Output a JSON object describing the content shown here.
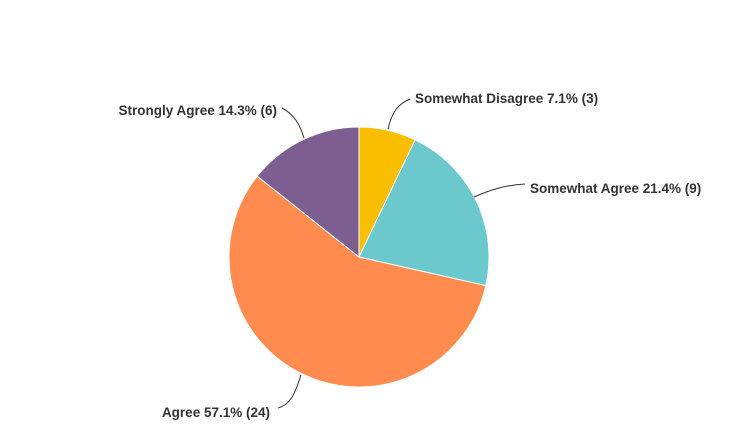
{
  "chart_data": {
    "type": "pie",
    "start": "top",
    "direction": "clockwise",
    "slices": [
      {
        "label": "Somewhat Disagree",
        "percent": 7.1,
        "count": 3,
        "color": "#F9BE00",
        "text": "Somewhat Disagree 7.1% (3)"
      },
      {
        "label": "Somewhat Agree",
        "percent": 21.4,
        "count": 9,
        "color": "#6BC8CD",
        "text": "Somewhat Agree 21.4% (9)"
      },
      {
        "label": "Agree",
        "percent": 57.1,
        "count": 24,
        "color": "#FF8B4F",
        "text": "Agree 57.1% (24)"
      },
      {
        "label": "Strongly Agree",
        "percent": 14.3,
        "count": 6,
        "color": "#7D5E90",
        "text": "Strongly Agree 14.3% (6)"
      }
    ]
  }
}
